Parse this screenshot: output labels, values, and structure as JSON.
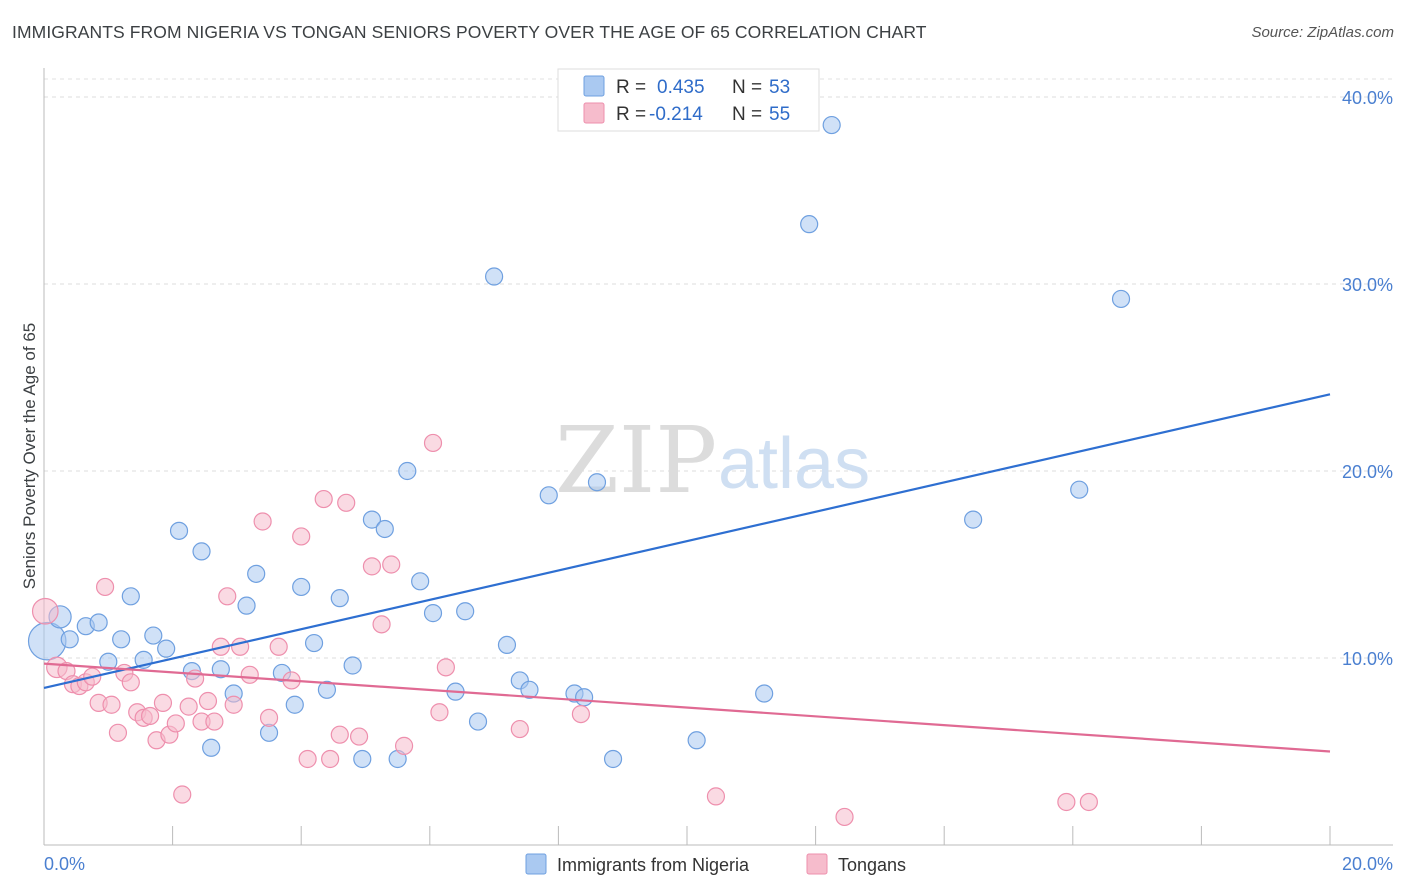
{
  "header": {
    "title": "IMMIGRANTS FROM NIGERIA VS TONGAN SENIORS POVERTY OVER THE AGE OF 65 CORRELATION CHART",
    "source": "Source: ZipAtlas.com"
  },
  "watermark": {
    "zip": "ZIP",
    "atlas": "atlas"
  },
  "legend": {
    "r_label": "R =",
    "n_label": "N =",
    "rows": [
      {
        "r": "0.435",
        "n": "53",
        "color": "#a9c8f2"
      },
      {
        "r": "-0.214",
        "n": "55",
        "color": "#f5b8cb"
      }
    ]
  },
  "chart_data": {
    "type": "scatter",
    "title": "IMMIGRANTS FROM NIGERIA VS TONGAN SENIORS POVERTY OVER THE AGE OF 65 CORRELATION CHART",
    "xlabel": "",
    "ylabel": "Seniors Poverty Over the Age of 65",
    "xlim": [
      0,
      20
    ],
    "ylim": [
      0,
      40
    ],
    "x_tick_labels": [
      "0.0%",
      "20.0%"
    ],
    "y_ticks": [
      10,
      20,
      30,
      40
    ],
    "y_tick_labels": [
      "10.0%",
      "20.0%",
      "30.0%",
      "40.0%"
    ],
    "grid": true,
    "legend_position": "top-center",
    "series": [
      {
        "name": "Immigrants from Nigeria",
        "color": "#6fa0e0",
        "fill": "#aac9f1",
        "line_color": "#2e6fd1",
        "trend": {
          "x": [
            0,
            20
          ],
          "y": [
            8.4,
            24.1
          ]
        },
        "points": [
          [
            0.05,
            10.9,
            2.2
          ],
          [
            0.25,
            12.2,
            1.3
          ],
          [
            0.4,
            11.0,
            1
          ],
          [
            0.65,
            11.7,
            1
          ],
          [
            0.85,
            11.9,
            1
          ],
          [
            1.0,
            9.8,
            1
          ],
          [
            1.2,
            11.0,
            1
          ],
          [
            1.35,
            13.3,
            1
          ],
          [
            1.55,
            9.9,
            1
          ],
          [
            1.7,
            11.2,
            1
          ],
          [
            1.9,
            10.5,
            1
          ],
          [
            2.1,
            16.8,
            1
          ],
          [
            2.3,
            9.3,
            1
          ],
          [
            2.45,
            15.7,
            1
          ],
          [
            2.6,
            5.2,
            1
          ],
          [
            2.75,
            9.4,
            1
          ],
          [
            2.95,
            8.1,
            1
          ],
          [
            3.15,
            12.8,
            1
          ],
          [
            3.3,
            14.5,
            1
          ],
          [
            3.5,
            6.0,
            1
          ],
          [
            3.7,
            9.2,
            1
          ],
          [
            3.9,
            7.5,
            1
          ],
          [
            4.0,
            13.8,
            1
          ],
          [
            4.2,
            10.8,
            1
          ],
          [
            4.4,
            8.3,
            1
          ],
          [
            4.6,
            13.2,
            1
          ],
          [
            4.8,
            9.6,
            1
          ],
          [
            4.95,
            4.6,
            1
          ],
          [
            5.1,
            17.4,
            1
          ],
          [
            5.3,
            16.9,
            1
          ],
          [
            5.5,
            4.6,
            1
          ],
          [
            5.65,
            20.0,
            1
          ],
          [
            5.85,
            14.1,
            1
          ],
          [
            6.05,
            12.4,
            1
          ],
          [
            6.4,
            8.2,
            1
          ],
          [
            6.55,
            12.5,
            1
          ],
          [
            6.75,
            6.6,
            1
          ],
          [
            7.0,
            30.4,
            1
          ],
          [
            7.2,
            10.7,
            1
          ],
          [
            7.4,
            8.8,
            1
          ],
          [
            7.55,
            8.3,
            1
          ],
          [
            7.85,
            18.7,
            1
          ],
          [
            8.25,
            8.1,
            1
          ],
          [
            8.4,
            7.9,
            1
          ],
          [
            8.6,
            19.4,
            1
          ],
          [
            8.85,
            4.6,
            1
          ],
          [
            10.15,
            5.6,
            1
          ],
          [
            11.2,
            8.1,
            1
          ],
          [
            11.9,
            33.2,
            1
          ],
          [
            12.25,
            38.5,
            1
          ],
          [
            14.45,
            17.4,
            1
          ],
          [
            16.1,
            19.0,
            1
          ],
          [
            16.75,
            29.2,
            1
          ]
        ]
      },
      {
        "name": "Tongans",
        "color": "#ee8fad",
        "fill": "#f6bccc",
        "line_color": "#e06a93",
        "trend": {
          "x": [
            0,
            20
          ],
          "y": [
            9.7,
            5.0
          ]
        },
        "points": [
          [
            0.02,
            12.5,
            1.5
          ],
          [
            0.2,
            9.5,
            1.2
          ],
          [
            0.35,
            9.3,
            1
          ],
          [
            0.45,
            8.6,
            1
          ],
          [
            0.55,
            8.5,
            1
          ],
          [
            0.65,
            8.7,
            1
          ],
          [
            0.75,
            9.0,
            1
          ],
          [
            0.85,
            7.6,
            1
          ],
          [
            0.95,
            13.8,
            1
          ],
          [
            1.05,
            7.5,
            1
          ],
          [
            1.15,
            6.0,
            1
          ],
          [
            1.25,
            9.2,
            1
          ],
          [
            1.35,
            8.7,
            1
          ],
          [
            1.45,
            7.1,
            1
          ],
          [
            1.55,
            6.8,
            1
          ],
          [
            1.65,
            6.9,
            1
          ],
          [
            1.75,
            5.6,
            1
          ],
          [
            1.85,
            7.6,
            1
          ],
          [
            1.95,
            5.9,
            1
          ],
          [
            2.05,
            6.5,
            1
          ],
          [
            2.15,
            2.7,
            1
          ],
          [
            2.25,
            7.4,
            1
          ],
          [
            2.35,
            8.9,
            1
          ],
          [
            2.45,
            6.6,
            1
          ],
          [
            2.55,
            7.7,
            1
          ],
          [
            2.65,
            6.6,
            1
          ],
          [
            2.75,
            10.6,
            1
          ],
          [
            2.85,
            13.3,
            1
          ],
          [
            2.95,
            7.5,
            1
          ],
          [
            3.05,
            10.6,
            1
          ],
          [
            3.2,
            9.1,
            1
          ],
          [
            3.4,
            17.3,
            1
          ],
          [
            3.5,
            6.8,
            1
          ],
          [
            3.65,
            10.6,
            1
          ],
          [
            3.85,
            8.8,
            1
          ],
          [
            4.0,
            16.5,
            1
          ],
          [
            4.1,
            4.6,
            1
          ],
          [
            4.35,
            18.5,
            1
          ],
          [
            4.45,
            4.6,
            1
          ],
          [
            4.6,
            5.9,
            1
          ],
          [
            4.7,
            18.3,
            1
          ],
          [
            4.9,
            5.8,
            1
          ],
          [
            5.1,
            14.9,
            1
          ],
          [
            5.25,
            11.8,
            1
          ],
          [
            5.4,
            15.0,
            1
          ],
          [
            5.6,
            5.3,
            1
          ],
          [
            6.05,
            21.5,
            1
          ],
          [
            6.15,
            7.1,
            1
          ],
          [
            6.25,
            9.5,
            1
          ],
          [
            7.4,
            6.2,
            1
          ],
          [
            8.35,
            7.0,
            1
          ],
          [
            10.45,
            2.6,
            1
          ],
          [
            12.45,
            1.5,
            1
          ],
          [
            15.9,
            2.3,
            1
          ],
          [
            16.25,
            2.3,
            1
          ]
        ]
      }
    ]
  }
}
